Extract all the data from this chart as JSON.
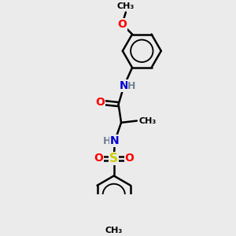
{
  "bg_color": "#ebebeb",
  "atom_colors": {
    "C": "#000000",
    "H": "#708090",
    "N": "#0000cd",
    "O": "#ff0000",
    "S": "#cccc00"
  },
  "bond_color": "#000000",
  "bond_width": 1.8,
  "fig_size": [
    3.0,
    3.0
  ],
  "dpi": 100,
  "xlim": [
    0,
    10
  ],
  "ylim": [
    0,
    10
  ]
}
